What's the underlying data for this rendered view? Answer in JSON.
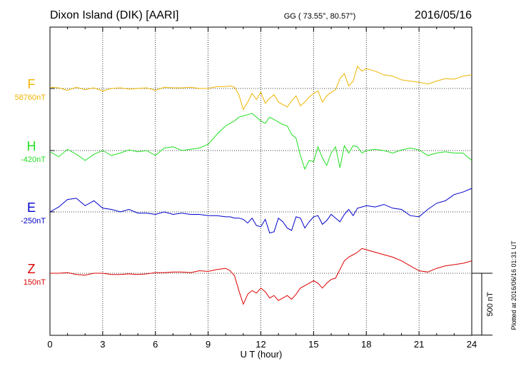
{
  "header": {
    "station": "Dixon Island (DIK)  [AARI]",
    "coords": "GG ( 73.55°,  80.57°)",
    "date": "2016/05/16"
  },
  "footer_note": "Plotted at 2016/06/16 01:31  UT",
  "scale_bar": {
    "label": "500 nT",
    "value": 500
  },
  "colors": {
    "F": "#f0b400",
    "H": "#22e022",
    "E": "#0000cc",
    "Z": "#dd0000"
  },
  "chart_data": {
    "type": "line",
    "xlabel": "U T (hour)",
    "xlim": [
      0,
      24
    ],
    "x_ticks": [
      0,
      3,
      6,
      9,
      12,
      15,
      18,
      21,
      24
    ],
    "x_tick_labels": [
      "0",
      "3",
      "6",
      "9",
      "12",
      "15",
      "18",
      "21",
      "24"
    ],
    "grid": true,
    "units_per_panel_offset": 500,
    "series": [
      {
        "name": "F",
        "baseline_label": "58760nT",
        "offset": 0,
        "x": [
          0,
          0.5,
          1,
          1.5,
          2,
          2.5,
          3,
          3.5,
          4,
          4.5,
          5,
          5.5,
          6,
          6.5,
          7,
          7.5,
          8,
          8.5,
          9,
          9.5,
          10,
          10.25,
          10.5,
          10.75,
          11,
          11.25,
          11.5,
          11.75,
          12,
          12.25,
          12.5,
          12.75,
          13,
          13.25,
          13.5,
          13.75,
          14,
          14.25,
          14.5,
          14.75,
          15,
          15.25,
          15.5,
          15.75,
          16,
          16.25,
          16.5,
          16.75,
          17,
          17.25,
          17.5,
          17.75,
          18,
          18.5,
          19,
          19.5,
          20,
          20.5,
          21,
          21.5,
          22,
          22.5,
          23,
          23.5,
          24
        ],
        "y": [
          10,
          5,
          -15,
          10,
          -10,
          5,
          -20,
          0,
          5,
          -5,
          0,
          5,
          -15,
          10,
          5,
          5,
          10,
          0,
          0,
          15,
          15,
          20,
          10,
          -50,
          -170,
          -110,
          -40,
          -90,
          -30,
          -120,
          -80,
          -50,
          -110,
          -130,
          -150,
          -100,
          -60,
          -140,
          -110,
          -70,
          -40,
          -20,
          -110,
          -60,
          -30,
          -10,
          80,
          120,
          20,
          60,
          180,
          140,
          160,
          140,
          110,
          100,
          70,
          60,
          50,
          35,
          60,
          80,
          75,
          100,
          110
        ]
      },
      {
        "name": "H",
        "baseline_label": "-420nT",
        "offset": 0,
        "x": [
          0,
          0.5,
          1,
          1.5,
          2,
          2.5,
          3,
          3.5,
          4,
          4.5,
          5,
          5.5,
          6,
          6.5,
          7,
          7.5,
          8,
          8.5,
          9,
          9.5,
          10,
          10.25,
          10.5,
          10.75,
          11,
          11.25,
          11.5,
          11.75,
          12,
          12.25,
          12.5,
          12.75,
          13,
          13.25,
          13.5,
          13.75,
          14,
          14.25,
          14.5,
          14.75,
          15,
          15.25,
          15.5,
          15.75,
          16,
          16.25,
          16.5,
          16.75,
          17,
          17.25,
          17.5,
          17.75,
          18,
          18.5,
          19,
          19.5,
          20,
          20.5,
          21,
          21.5,
          22,
          22.5,
          23,
          23.5,
          24
        ],
        "y": [
          -10,
          -50,
          10,
          -30,
          -80,
          -30,
          0,
          -40,
          -20,
          5,
          -10,
          0,
          -40,
          20,
          30,
          0,
          10,
          20,
          50,
          130,
          200,
          220,
          240,
          270,
          280,
          290,
          300,
          270,
          240,
          220,
          270,
          250,
          230,
          210,
          200,
          130,
          100,
          -40,
          -150,
          -80,
          -90,
          30,
          -60,
          -120,
          -20,
          30,
          -140,
          40,
          -20,
          40,
          30,
          -20,
          0,
          10,
          0,
          -20,
          5,
          20,
          5,
          -40,
          -20,
          -10,
          -20,
          -20,
          -80
        ]
      },
      {
        "name": "E",
        "baseline_label": "-250nT",
        "offset": 0,
        "x": [
          0,
          0.5,
          1,
          1.5,
          2,
          2.5,
          3,
          3.5,
          4,
          4.5,
          5,
          5.5,
          6,
          6.5,
          7,
          7.5,
          8,
          8.5,
          9,
          9.5,
          10,
          10.25,
          10.5,
          10.75,
          11,
          11.25,
          11.5,
          11.75,
          12,
          12.25,
          12.5,
          12.75,
          13,
          13.25,
          13.5,
          13.75,
          14,
          14.25,
          14.5,
          14.75,
          15,
          15.25,
          15.5,
          15.75,
          16,
          16.25,
          16.5,
          16.75,
          17,
          17.25,
          17.5,
          17.75,
          18,
          18.5,
          19,
          19.5,
          20,
          20.5,
          21,
          21.5,
          22,
          22.5,
          23,
          23.5,
          24
        ],
        "y": [
          0,
          40,
          100,
          110,
          50,
          90,
          30,
          20,
          0,
          20,
          -10,
          -10,
          -20,
          0,
          -20,
          -10,
          -20,
          -20,
          -30,
          -30,
          -40,
          -40,
          -50,
          -50,
          -60,
          -90,
          -50,
          -110,
          -120,
          -60,
          -170,
          -160,
          -50,
          -80,
          -130,
          -150,
          -40,
          -50,
          -130,
          -80,
          -40,
          -30,
          -100,
          -70,
          -20,
          -50,
          -80,
          -20,
          20,
          -30,
          30,
          40,
          50,
          40,
          60,
          30,
          20,
          -30,
          -40,
          20,
          70,
          90,
          140,
          160,
          190
        ]
      },
      {
        "name": "Z",
        "baseline_label": "150nT",
        "offset": 0,
        "x": [
          0,
          0.5,
          1,
          1.5,
          2,
          2.5,
          3,
          3.5,
          4,
          4.5,
          5,
          5.5,
          6,
          6.5,
          7,
          7.5,
          8,
          8.5,
          9,
          9.5,
          10,
          10.25,
          10.5,
          10.75,
          11,
          11.25,
          11.5,
          11.75,
          12,
          12.25,
          12.5,
          12.75,
          13,
          13.25,
          13.5,
          13.75,
          14,
          14.25,
          14.5,
          14.75,
          15,
          15.25,
          15.5,
          15.75,
          16,
          16.25,
          16.5,
          16.75,
          17,
          17.25,
          17.5,
          17.75,
          18,
          18.5,
          19,
          19.5,
          20,
          20.5,
          21,
          21.5,
          22,
          22.5,
          23,
          23.5,
          24
        ],
        "y": [
          0,
          0,
          5,
          -10,
          -15,
          0,
          0,
          -10,
          -10,
          -5,
          -10,
          -5,
          5,
          5,
          10,
          10,
          5,
          20,
          15,
          30,
          40,
          20,
          -20,
          -140,
          -250,
          -170,
          -140,
          -160,
          -120,
          -150,
          -200,
          -180,
          -220,
          -200,
          -180,
          -210,
          -170,
          -120,
          -100,
          -80,
          -60,
          -80,
          -120,
          -80,
          -50,
          -40,
          30,
          100,
          130,
          150,
          170,
          200,
          190,
          170,
          150,
          130,
          100,
          60,
          20,
          10,
          40,
          60,
          70,
          80,
          100
        ]
      }
    ]
  }
}
